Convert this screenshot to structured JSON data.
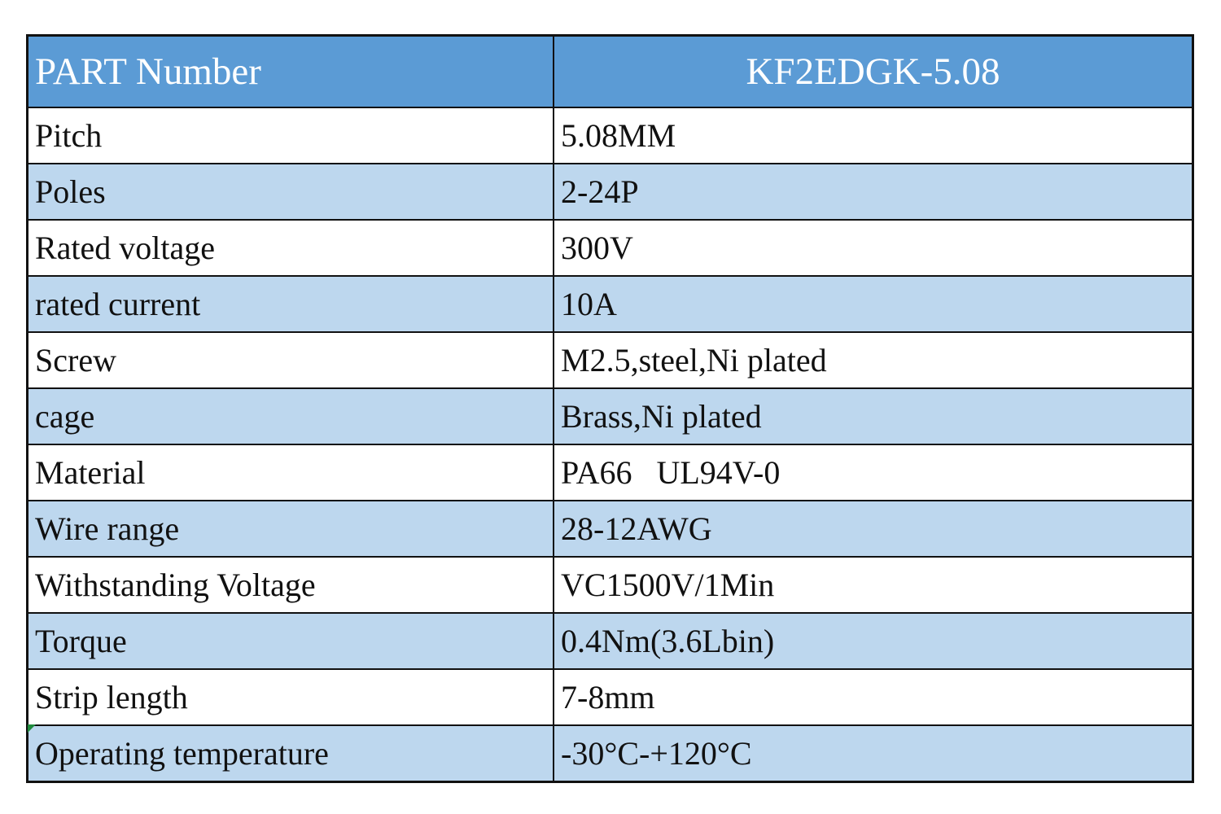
{
  "table": {
    "header": [
      "PART Number",
      "KF2EDGK-5.08"
    ],
    "rows": [
      [
        "Pitch",
        "5.08MM"
      ],
      [
        "Poles",
        "2-24P"
      ],
      [
        "Rated voltage",
        "300V"
      ],
      [
        "rated current",
        "10A"
      ],
      [
        "Screw",
        "M2.5,steel,Ni plated"
      ],
      [
        "cage",
        "Brass,Ni plated"
      ],
      [
        "Material",
        "PA66   UL94V-0"
      ],
      [
        "Wire range",
        "28-12AWG"
      ],
      [
        "Withstanding Voltage",
        "VC1500V/1Min"
      ],
      [
        "Torque",
        "0.4Nm(3.6Lbin)"
      ],
      [
        "Strip length",
        "7-8mm"
      ],
      [
        "Operating temperature",
        "-30°C-+120°C"
      ]
    ]
  }
}
